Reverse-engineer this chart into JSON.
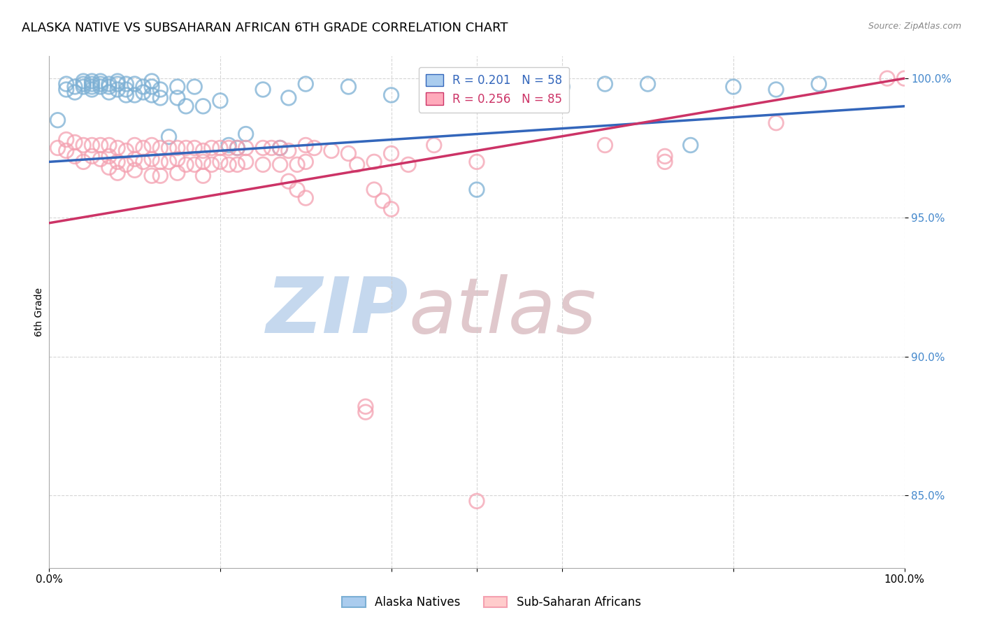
{
  "title": "ALASKA NATIVE VS SUBSAHARAN AFRICAN 6TH GRADE CORRELATION CHART",
  "source": "Source: ZipAtlas.com",
  "ylabel": "6th Grade",
  "ytick_vals": [
    0.85,
    0.9,
    0.95,
    1.0
  ],
  "ytick_labels": [
    "85.0%",
    "90.0%",
    "95.0%",
    "100.0%"
  ],
  "xmin": 0.0,
  "xmax": 1.0,
  "ymin": 0.824,
  "ymax": 1.008,
  "blue_R": 0.201,
  "blue_N": 58,
  "pink_R": 0.256,
  "pink_N": 85,
  "blue_color": "#7BAFD4",
  "pink_color": "#F4A0B0",
  "blue_line_color": "#3366BB",
  "pink_line_color": "#CC3366",
  "background_color": "#FFFFFF",
  "watermark_zip_color": "#C8D8EE",
  "watermark_atlas_color": "#D4C8C8",
  "title_fontsize": 13,
  "blue_line_x": [
    0.0,
    1.0
  ],
  "blue_line_y": [
    0.97,
    0.99
  ],
  "pink_line_x": [
    0.0,
    1.0
  ],
  "pink_line_y": [
    0.948,
    1.0
  ],
  "blue_scatter_x": [
    0.01,
    0.02,
    0.02,
    0.03,
    0.03,
    0.04,
    0.04,
    0.04,
    0.05,
    0.05,
    0.05,
    0.05,
    0.06,
    0.06,
    0.06,
    0.07,
    0.07,
    0.07,
    0.08,
    0.08,
    0.08,
    0.09,
    0.09,
    0.09,
    0.1,
    0.1,
    0.11,
    0.11,
    0.12,
    0.12,
    0.12,
    0.13,
    0.13,
    0.14,
    0.15,
    0.15,
    0.16,
    0.17,
    0.18,
    0.2,
    0.21,
    0.22,
    0.23,
    0.25,
    0.27,
    0.28,
    0.3,
    0.35,
    0.4,
    0.5,
    0.55,
    0.6,
    0.65,
    0.7,
    0.75,
    0.8,
    0.85,
    0.9
  ],
  "blue_scatter_y": [
    0.985,
    0.996,
    0.998,
    0.997,
    0.995,
    0.999,
    0.998,
    0.997,
    0.999,
    0.998,
    0.997,
    0.996,
    0.999,
    0.998,
    0.997,
    0.998,
    0.997,
    0.995,
    0.999,
    0.998,
    0.996,
    0.998,
    0.996,
    0.994,
    0.998,
    0.994,
    0.997,
    0.995,
    0.999,
    0.997,
    0.994,
    0.996,
    0.993,
    0.979,
    0.997,
    0.993,
    0.99,
    0.997,
    0.99,
    0.992,
    0.976,
    0.975,
    0.98,
    0.996,
    0.975,
    0.993,
    0.998,
    0.997,
    0.994,
    0.96,
    0.998,
    0.997,
    0.998,
    0.998,
    0.976,
    0.997,
    0.996,
    0.998
  ],
  "pink_scatter_x": [
    0.01,
    0.02,
    0.02,
    0.03,
    0.03,
    0.04,
    0.04,
    0.05,
    0.05,
    0.06,
    0.06,
    0.07,
    0.07,
    0.07,
    0.08,
    0.08,
    0.08,
    0.09,
    0.09,
    0.1,
    0.1,
    0.1,
    0.11,
    0.11,
    0.12,
    0.12,
    0.12,
    0.13,
    0.13,
    0.13,
    0.14,
    0.14,
    0.15,
    0.15,
    0.15,
    0.16,
    0.16,
    0.17,
    0.17,
    0.18,
    0.18,
    0.18,
    0.19,
    0.19,
    0.2,
    0.2,
    0.21,
    0.21,
    0.22,
    0.22,
    0.23,
    0.23,
    0.25,
    0.25,
    0.26,
    0.27,
    0.27,
    0.28,
    0.29,
    0.3,
    0.3,
    0.31,
    0.33,
    0.35,
    0.36,
    0.37,
    0.37,
    0.38,
    0.4,
    0.42,
    0.45,
    0.5,
    0.65,
    0.72,
    0.98,
    1.0,
    0.28,
    0.29,
    0.3,
    0.38,
    0.39,
    0.4,
    0.5,
    0.72,
    0.85
  ],
  "pink_scatter_y": [
    0.975,
    0.978,
    0.974,
    0.977,
    0.972,
    0.976,
    0.97,
    0.976,
    0.972,
    0.976,
    0.971,
    0.976,
    0.972,
    0.968,
    0.975,
    0.97,
    0.966,
    0.974,
    0.969,
    0.976,
    0.971,
    0.967,
    0.975,
    0.97,
    0.976,
    0.971,
    0.965,
    0.975,
    0.97,
    0.965,
    0.975,
    0.97,
    0.975,
    0.971,
    0.966,
    0.975,
    0.969,
    0.975,
    0.969,
    0.974,
    0.97,
    0.965,
    0.975,
    0.969,
    0.975,
    0.97,
    0.975,
    0.969,
    0.975,
    0.969,
    0.975,
    0.97,
    0.975,
    0.969,
    0.975,
    0.975,
    0.969,
    0.974,
    0.969,
    0.976,
    0.97,
    0.975,
    0.974,
    0.973,
    0.969,
    0.88,
    0.882,
    0.97,
    0.973,
    0.969,
    0.976,
    0.848,
    0.976,
    0.972,
    1.0,
    1.0,
    0.963,
    0.96,
    0.957,
    0.96,
    0.956,
    0.953,
    0.97,
    0.97,
    0.984
  ]
}
